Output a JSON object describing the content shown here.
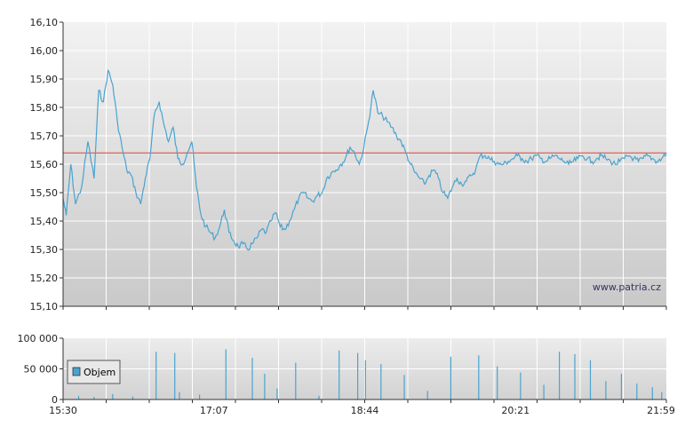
{
  "watermark": "www.patria.cz",
  "colors": {
    "price_line": "#4aa3cf",
    "reference_line": "#e0403a",
    "volume_bar": "#4aa3cf",
    "grid": "#ffffff",
    "axis": "#333333"
  },
  "chart_data": [
    {
      "type": "line",
      "title": "",
      "xlabel": "",
      "ylabel": "",
      "ylim": [
        15.1,
        16.1
      ],
      "y_ticks": [
        "16,10",
        "16,00",
        "15,90",
        "15,80",
        "15,70",
        "15,60",
        "15,50",
        "15,40",
        "15,30",
        "15,20",
        "15,10"
      ],
      "x_ticks": [
        "15:30",
        "17:07",
        "18:44",
        "20:21",
        "21:59"
      ],
      "x_range_minutes": [
        930,
        1319
      ],
      "grid": true,
      "reference_value": 15.64,
      "series": [
        {
          "name": "",
          "x_minutes": [
            930,
            932,
            935,
            938,
            942,
            946,
            950,
            953,
            956,
            959,
            962,
            965,
            968,
            971,
            974,
            977,
            980,
            983,
            986,
            989,
            992,
            995,
            998,
            1001,
            1004,
            1007,
            1010,
            1013,
            1016,
            1019,
            1022,
            1025,
            1028,
            1031,
            1034,
            1037,
            1040,
            1043,
            1046,
            1049,
            1052,
            1055,
            1058,
            1061,
            1064,
            1067,
            1070,
            1073,
            1076,
            1079,
            1082,
            1085,
            1088,
            1091,
            1094,
            1097,
            1100,
            1103,
            1106,
            1109,
            1112,
            1115,
            1118,
            1121,
            1124,
            1127,
            1130,
            1133,
            1136,
            1139,
            1142,
            1145,
            1148,
            1151,
            1154,
            1157,
            1160,
            1163,
            1166,
            1169,
            1172,
            1175,
            1178,
            1181,
            1184,
            1187,
            1190,
            1193,
            1196,
            1199,
            1202,
            1205,
            1208,
            1211,
            1214,
            1217,
            1220,
            1223,
            1226,
            1229,
            1232,
            1235,
            1238,
            1241,
            1244,
            1247,
            1250,
            1253,
            1256,
            1259,
            1262,
            1265,
            1268,
            1271,
            1274,
            1277,
            1280,
            1283,
            1286,
            1289,
            1292,
            1295,
            1298,
            1301,
            1304,
            1307,
            1310,
            1313,
            1316,
            1319
          ],
          "values": [
            15.48,
            15.42,
            15.6,
            15.46,
            15.52,
            15.68,
            15.55,
            15.86,
            15.82,
            15.93,
            15.88,
            15.75,
            15.66,
            15.58,
            15.56,
            15.5,
            15.46,
            15.55,
            15.62,
            15.78,
            15.82,
            15.74,
            15.68,
            15.73,
            15.62,
            15.6,
            15.64,
            15.68,
            15.52,
            15.42,
            15.38,
            15.36,
            15.34,
            15.38,
            15.44,
            15.36,
            15.33,
            15.31,
            15.32,
            15.3,
            15.32,
            15.34,
            15.37,
            15.36,
            15.4,
            15.43,
            15.38,
            15.37,
            15.4,
            15.44,
            15.48,
            15.5,
            15.48,
            15.47,
            15.49,
            15.5,
            15.55,
            15.57,
            15.58,
            15.6,
            15.62,
            15.66,
            15.64,
            15.6,
            15.66,
            15.75,
            15.86,
            15.78,
            15.77,
            15.75,
            15.73,
            15.7,
            15.68,
            15.64,
            15.6,
            15.57,
            15.55,
            15.53,
            15.56,
            15.58,
            15.55,
            15.5,
            15.48,
            15.52,
            15.55,
            15.53,
            15.54,
            15.56,
            15.58,
            15.63,
            15.63,
            15.62,
            15.61,
            15.6,
            15.6,
            15.61,
            15.62,
            15.63,
            15.62,
            15.61,
            15.62,
            15.63,
            15.62,
            15.61,
            15.62,
            15.63,
            15.62,
            15.61,
            15.6,
            15.61,
            15.62,
            15.63,
            15.62,
            15.61,
            15.62,
            15.63,
            15.62,
            15.61,
            15.6,
            15.61,
            15.62,
            15.63,
            15.62,
            15.61,
            15.62,
            15.63,
            15.62,
            15.61,
            15.62,
            15.64
          ]
        }
      ]
    },
    {
      "type": "bar",
      "title": "",
      "xlabel": "",
      "ylabel": "",
      "ylim": [
        0,
        100000
      ],
      "y_ticks": [
        "100 000",
        "50 000",
        "0"
      ],
      "x_ticks": [
        "15:30",
        "17:07",
        "18:44",
        "20:21",
        "21:59"
      ],
      "x_range_minutes": [
        930,
        1319
      ],
      "legend": {
        "position": "left",
        "label": "Objem"
      },
      "series": [
        {
          "name": "Objem",
          "x_minutes": [
            940,
            950,
            962,
            975,
            990,
            1005,
            1002,
            1018,
            1035,
            1052,
            1060,
            1068,
            1080,
            1095,
            1108,
            1120,
            1125,
            1135,
            1150,
            1165,
            1180,
            1198,
            1210,
            1225,
            1240,
            1250,
            1260,
            1270,
            1280,
            1290,
            1300,
            1310,
            1316
          ],
          "values": [
            6000,
            4000,
            9000,
            5000,
            78000,
            12000,
            76000,
            8000,
            82000,
            68000,
            42000,
            18000,
            60000,
            6000,
            80000,
            76000,
            64000,
            58000,
            40000,
            14000,
            70000,
            72000,
            54000,
            44000,
            24000,
            78000,
            74000,
            64000,
            30000,
            42000,
            26000,
            20000,
            12000
          ]
        }
      ]
    }
  ]
}
